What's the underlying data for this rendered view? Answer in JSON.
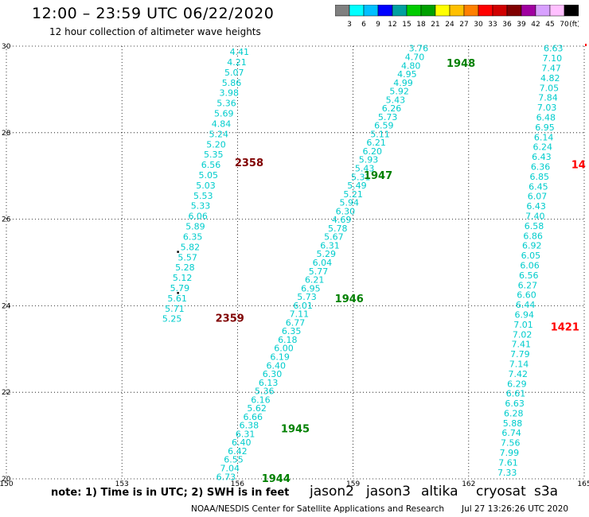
{
  "header": {
    "title": "12:00 – 23:59 UTC 06/22/2020",
    "subtitle": "12 hour collection of altimeter wave heights"
  },
  "color_scale": {
    "unit": "(ft)",
    "labels": [
      "3",
      "6",
      "9",
      "12",
      "15",
      "18",
      "21",
      "24",
      "27",
      "30",
      "33",
      "36",
      "39",
      "42",
      "45",
      "70"
    ],
    "colors": [
      "#808080",
      "#00ffff",
      "#00bfff",
      "#0000ff",
      "#00a0a0",
      "#00cc00",
      "#00a000",
      "#ffff00",
      "#ffc000",
      "#ff8000",
      "#ff0000",
      "#d00000",
      "#800000",
      "#a000a0",
      "#d8a0ff",
      "#ffc0ff",
      "#000000"
    ]
  },
  "footer": {
    "note": "note: 1) Time is in UTC; 2) SWH is in feet",
    "credit": "NOAA/NESDIS Center for Satellite Applications and Research",
    "timestamp": "Jul 27 13:26:26 UTC 2020",
    "satellites": [
      {
        "name": "jason2",
        "color": "#0000ff"
      },
      {
        "name": "jason3",
        "color": "#008000"
      },
      {
        "name": "altika",
        "color": "#ff9900"
      },
      {
        "name": "cryosat",
        "color": "#cc0000"
      },
      {
        "name": "s3a",
        "color": "#800000"
      }
    ]
  },
  "chart_data": {
    "type": "scatter",
    "title": "12:00 – 23:59 UTC 06/22/2020",
    "xlim": [
      150,
      165
    ],
    "ylim": [
      20,
      30
    ],
    "x_ticks": [
      "150",
      "153",
      "156",
      "159",
      "162",
      "165"
    ],
    "x_tick_values": [
      150,
      153,
      156,
      159,
      162,
      165
    ],
    "y_ticks": [
      "30",
      "28",
      "26",
      "24",
      "22",
      "20"
    ],
    "y_tick_values": [
      30,
      28,
      26,
      24,
      22,
      20
    ],
    "grid": "dotted",
    "value_color": "#00cccc",
    "time_colors": {
      "s3a": "#800000",
      "jason3": "#008000",
      "cryosat": "#ff0000"
    },
    "tracks": [
      {
        "satellite": "s3a",
        "x_top": 156.05,
        "y_top": 29.87,
        "x_bottom": 154.3,
        "y_bottom": 23.7,
        "values": [
          "4.41",
          "4.21",
          "5.07",
          "5.86",
          "3.98",
          "5.36",
          "5.69",
          "4.84",
          "5.24",
          "5.20",
          "5.35",
          "6.56",
          "5.05",
          "5.03",
          "5.53",
          "5.33",
          "6.06",
          "5.89",
          "6.35",
          "5.82",
          "5.57",
          "5.28",
          "5.12",
          "5.79",
          "5.61",
          "5.71",
          "5.25"
        ],
        "times": [
          {
            "label": "2358",
            "x": 156.3,
            "y": 27.3
          },
          {
            "label": "2359",
            "x": 155.8,
            "y": 23.7
          }
        ]
      },
      {
        "satellite": "jason3",
        "x_top": 160.7,
        "y_top": 29.95,
        "x_bottom": 155.7,
        "y_bottom": 20.05,
        "values": [
          "3.76",
          "4.70",
          "4.80",
          "4.95",
          "4.99",
          "5.92",
          "5.43",
          "6.26",
          "5.73",
          "6.59",
          "5.11",
          "6.21",
          "6.20",
          "5.93",
          "5.43",
          "5.31",
          "5.49",
          "5.21",
          "5.94",
          "6.30",
          "4.69",
          "5.78",
          "5.67",
          "6.31",
          "5.29",
          "6.04",
          "5.77",
          "6.21",
          "6.95",
          "5.73",
          "6.01",
          "7.11",
          "6.77",
          "6.35",
          "6.18",
          "6.00",
          "6.19",
          "6.40",
          "6.30",
          "6.13",
          "5.36",
          "6.16",
          "5.62",
          "6.66",
          "6.38",
          "6.31",
          "6.40",
          "6.42",
          "6.55",
          "7.04",
          "6.73"
        ],
        "times": [
          {
            "label": "1948",
            "x": 161.8,
            "y": 29.6
          },
          {
            "label": "1947",
            "x": 159.65,
            "y": 27.0
          },
          {
            "label": "1946",
            "x": 158.9,
            "y": 24.15
          },
          {
            "label": "1945",
            "x": 157.5,
            "y": 21.15
          },
          {
            "label": "1944",
            "x": 157.0,
            "y": 20.0
          }
        ]
      },
      {
        "satellite": "cryosat",
        "x_top": 164.2,
        "y_top": 29.95,
        "x_bottom": 163.0,
        "y_bottom": 20.15,
        "values": [
          "6.63",
          "7.10",
          "7.47",
          "4.82",
          "7.05",
          "7.84",
          "7.03",
          "6.48",
          "6.95",
          "6.14",
          "6.24",
          "6.43",
          "6.36",
          "6.85",
          "6.45",
          "6.07",
          "6.43",
          "7.40",
          "6.58",
          "6.86",
          "6.92",
          "6.05",
          "6.06",
          "6.56",
          "6.27",
          "6.60",
          "6.44",
          "6.94",
          "7.01",
          "7.02",
          "7.41",
          "7.79",
          "7.14",
          "7.42",
          "6.29",
          "6.61",
          "6.63",
          "6.28",
          "5.88",
          "6.74",
          "7.56",
          "7.99",
          "7.61",
          "7.33"
        ],
        "times": [
          {
            "label": "1421",
            "x": 164.5,
            "y": 23.5
          },
          {
            "label": "14",
            "x": 164.85,
            "y": 27.25
          }
        ]
      }
    ],
    "markers": [
      {
        "x": 154.45,
        "y": 25.25
      },
      {
        "x": 154.45,
        "y": 24.3
      }
    ]
  }
}
